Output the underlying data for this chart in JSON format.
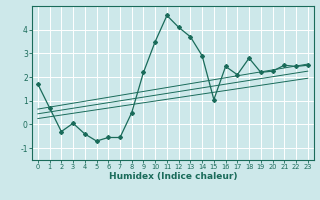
{
  "xlabel": "Humidex (Indice chaleur)",
  "ylabel": "",
  "bg_color": "#cde8ea",
  "grid_color": "#ffffff",
  "line_color": "#1a6b5a",
  "xlim": [
    -0.5,
    23.5
  ],
  "ylim": [
    -1.5,
    5.0
  ],
  "xticks": [
    0,
    1,
    2,
    3,
    4,
    5,
    6,
    7,
    8,
    9,
    10,
    11,
    12,
    13,
    14,
    15,
    16,
    17,
    18,
    19,
    20,
    21,
    22,
    23
  ],
  "yticks": [
    -1,
    0,
    1,
    2,
    3,
    4
  ],
  "curve_x": [
    0,
    1,
    2,
    3,
    4,
    5,
    6,
    7,
    8,
    9,
    10,
    11,
    12,
    13,
    14,
    15,
    16,
    17,
    18,
    19,
    20,
    21,
    22,
    23
  ],
  "curve_y": [
    1.7,
    0.7,
    -0.3,
    0.05,
    -0.4,
    -0.7,
    -0.55,
    -0.55,
    0.5,
    2.2,
    3.5,
    4.6,
    4.1,
    3.7,
    2.9,
    1.05,
    2.45,
    2.1,
    2.8,
    2.2,
    2.25,
    2.5,
    2.45,
    2.5
  ],
  "line1_x": [
    0,
    23
  ],
  "line1_y": [
    0.65,
    2.55
  ],
  "line2_x": [
    0,
    23
  ],
  "line2_y": [
    0.45,
    2.25
  ],
  "line3_x": [
    0,
    23
  ],
  "line3_y": [
    0.25,
    1.95
  ]
}
